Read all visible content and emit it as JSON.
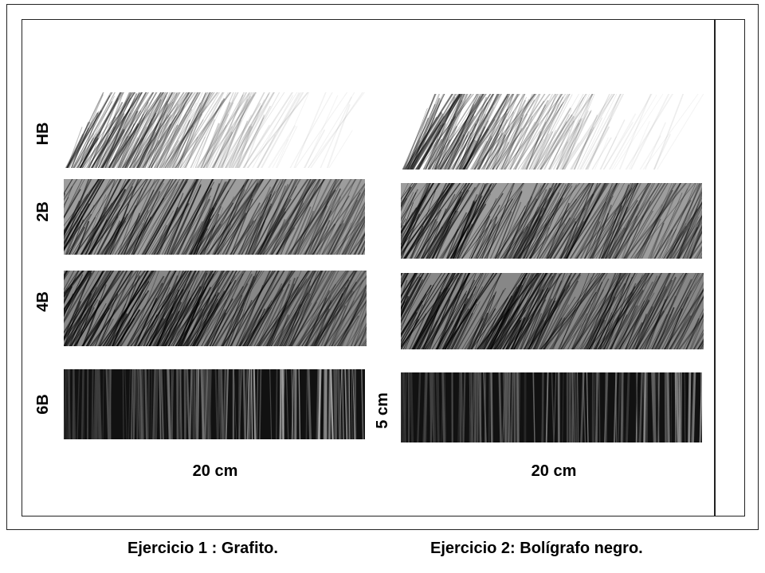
{
  "rows": [
    {
      "label": "HB",
      "darkness": 0.35,
      "style": "diagonal-fade"
    },
    {
      "label": "2B",
      "darkness": 0.65,
      "style": "diagonal"
    },
    {
      "label": "4B",
      "darkness": 0.8,
      "style": "diagonal"
    },
    {
      "label": "6B",
      "darkness": 0.95,
      "style": "vertical"
    }
  ],
  "exercises": [
    {
      "width_label": "20 cm",
      "caption": "Ejercicio 1 : Grafito."
    },
    {
      "width_label": "20 cm",
      "caption": "Ejercicio 2: Bolígrafo negro."
    }
  ],
  "height_label": "5 cm",
  "colors": {
    "ink": "#000000",
    "paper": "#ffffff",
    "frame": "#222222"
  }
}
